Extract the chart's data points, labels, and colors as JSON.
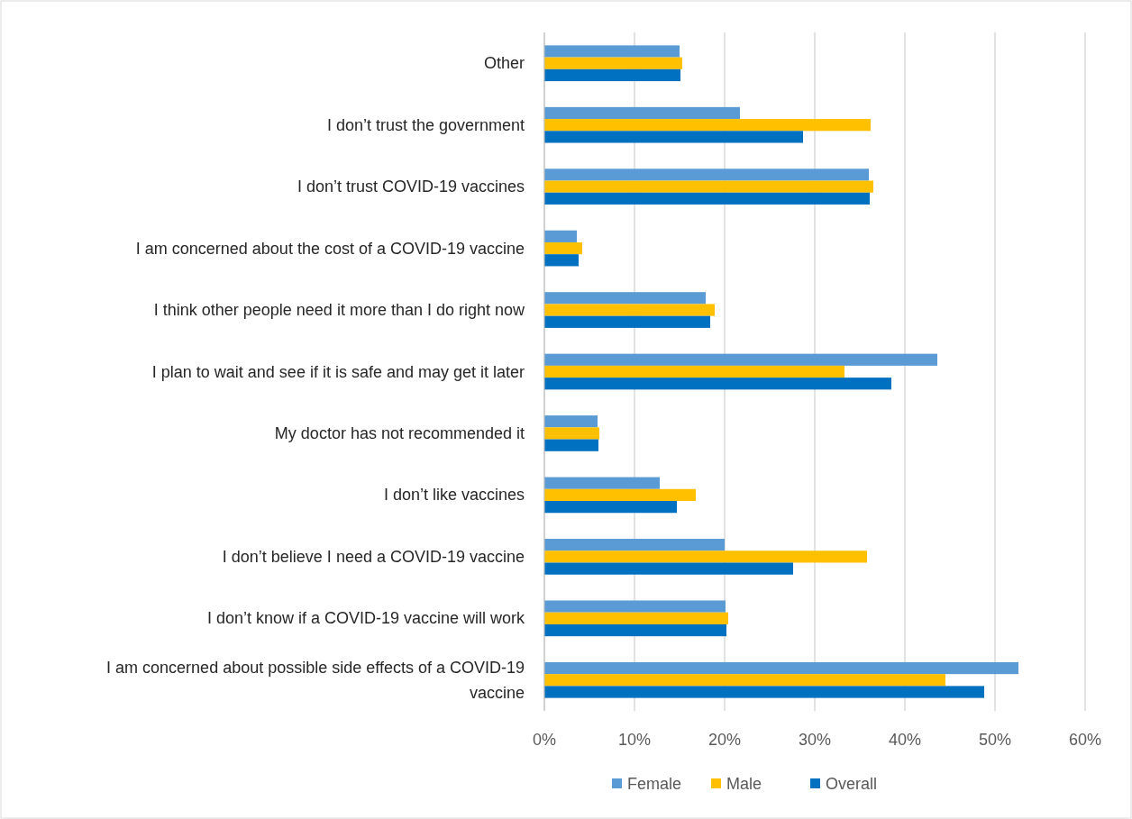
{
  "chart_data": {
    "type": "bar",
    "orientation": "horizontal",
    "categories": [
      "Other",
      "I don’t trust the government",
      "I don’t trust COVID-19 vaccines",
      "I am concerned about the cost of a COVID-19 vaccine ",
      "I think other people need it more than I do right now",
      "I plan to wait and see if it is safe and may get it later",
      "My doctor has not recommended it ",
      "I don’t like vaccines",
      "I don’t believe I need a COVID-19 vaccine",
      "I don’t know if a COVID-19 vaccine will work ",
      "I am concerned about possible side effects of a COVID-19 vaccine"
    ],
    "series": [
      {
        "name": "Female",
        "color": "#5b9bd5",
        "values": [
          15.0,
          21.7,
          36.0,
          3.6,
          17.9,
          43.6,
          5.9,
          12.8,
          20.0,
          20.1,
          52.6
        ]
      },
      {
        "name": "Male",
        "color": "#ffc000",
        "values": [
          15.3,
          36.2,
          36.5,
          4.2,
          18.9,
          33.3,
          6.1,
          16.8,
          35.8,
          20.4,
          44.5
        ]
      },
      {
        "name": "Overall",
        "color": "#0070c0",
        "values": [
          15.1,
          28.7,
          36.1,
          3.8,
          18.4,
          38.5,
          6.0,
          14.7,
          27.6,
          20.2,
          48.8
        ]
      }
    ],
    "xlim": [
      0,
      60
    ],
    "xticks": [
      {
        "value": 0,
        "label": "0%"
      },
      {
        "value": 10,
        "label": "10%"
      },
      {
        "value": 20,
        "label": "20%"
      },
      {
        "value": 30,
        "label": "30%"
      },
      {
        "value": 40,
        "label": "40%"
      },
      {
        "value": 50,
        "label": "50%"
      },
      {
        "value": 60,
        "label": "60%"
      }
    ],
    "grid": "x",
    "legend": "bottom"
  }
}
